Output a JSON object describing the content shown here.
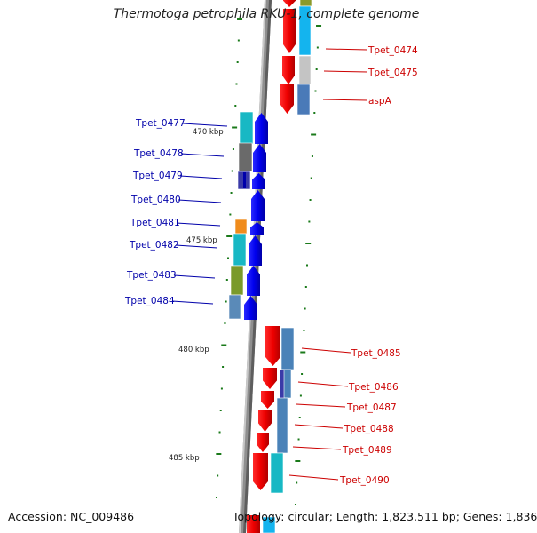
{
  "title": "Thermotoga petrophila RKU-1, complete genome",
  "footer": {
    "accession": "Accession: NC_009486",
    "topology": "Topology: circular; Length: 1,823,511 bp; Genes: 1,836"
  },
  "colors": {
    "backbone": "#8a8a8a",
    "forward_strand": "#ff0000",
    "reverse_strand": "#0000ee",
    "tick": "#1a7a1a",
    "label_forward": "#cc0000",
    "label_reverse": "#0000aa"
  },
  "kbp_labels": [
    "470 kbp",
    "475 kbp",
    "480 kbp",
    "485 kbp"
  ],
  "genes_right": [
    {
      "label": "Tpet_0474"
    },
    {
      "label": "Tpet_0475"
    },
    {
      "label": "aspA"
    },
    {
      "label": "Tpet_0485"
    },
    {
      "label": "Tpet_0486"
    },
    {
      "label": "Tpet_0487"
    },
    {
      "label": "Tpet_0488"
    },
    {
      "label": "Tpet_0489"
    },
    {
      "label": "Tpet_0490"
    }
  ],
  "genes_left": [
    {
      "label": "Tpet_0477"
    },
    {
      "label": "Tpet_0478"
    },
    {
      "label": "Tpet_0479"
    },
    {
      "label": "Tpet_0480"
    },
    {
      "label": "Tpet_0481"
    },
    {
      "label": "Tpet_0482"
    },
    {
      "label": "Tpet_0483"
    },
    {
      "label": "Tpet_0484"
    }
  ]
}
